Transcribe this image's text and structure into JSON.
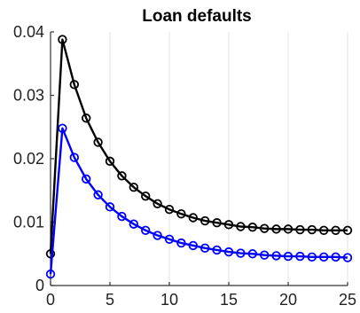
{
  "chart_data": {
    "type": "line",
    "title": "Loan defaults",
    "xlabel": "",
    "ylabel": "",
    "xlim": [
      0,
      25
    ],
    "ylim": [
      0,
      0.04
    ],
    "x_ticks": [
      0,
      5,
      10,
      15,
      20,
      25
    ],
    "x_tick_labels": [
      "0",
      "5",
      "10",
      "15",
      "20",
      "25"
    ],
    "y_ticks": [
      0,
      0.01,
      0.02,
      0.03,
      0.04
    ],
    "y_tick_labels": [
      "0",
      "0.01",
      "0.02",
      "0.03",
      "0.04"
    ],
    "grid": "vertical",
    "x": [
      0,
      1,
      2,
      3,
      4,
      5,
      6,
      7,
      8,
      9,
      10,
      11,
      12,
      13,
      14,
      15,
      16,
      17,
      18,
      19,
      20,
      21,
      22,
      23,
      24,
      25
    ],
    "series": [
      {
        "color": "#000000",
        "marker": "circle",
        "values": [
          0.005,
          0.0388,
          0.0317,
          0.0264,
          0.0226,
          0.0196,
          0.0173,
          0.0155,
          0.0141,
          0.0129,
          0.012,
          0.0113,
          0.0107,
          0.0102,
          0.0099,
          0.0096,
          0.0093,
          0.0092,
          0.009,
          0.0089,
          0.0089,
          0.0088,
          0.0088,
          0.0087,
          0.0087,
          0.0087
        ]
      },
      {
        "color": "#0000ff",
        "marker": "circle",
        "values": [
          0.0018,
          0.0248,
          0.0202,
          0.0168,
          0.0143,
          0.0124,
          0.0109,
          0.0097,
          0.0087,
          0.0079,
          0.0073,
          0.0067,
          0.0063,
          0.0059,
          0.0056,
          0.0053,
          0.0051,
          0.005,
          0.0048,
          0.0047,
          0.0046,
          0.0046,
          0.0045,
          0.0045,
          0.0045,
          0.0044
        ]
      }
    ]
  }
}
